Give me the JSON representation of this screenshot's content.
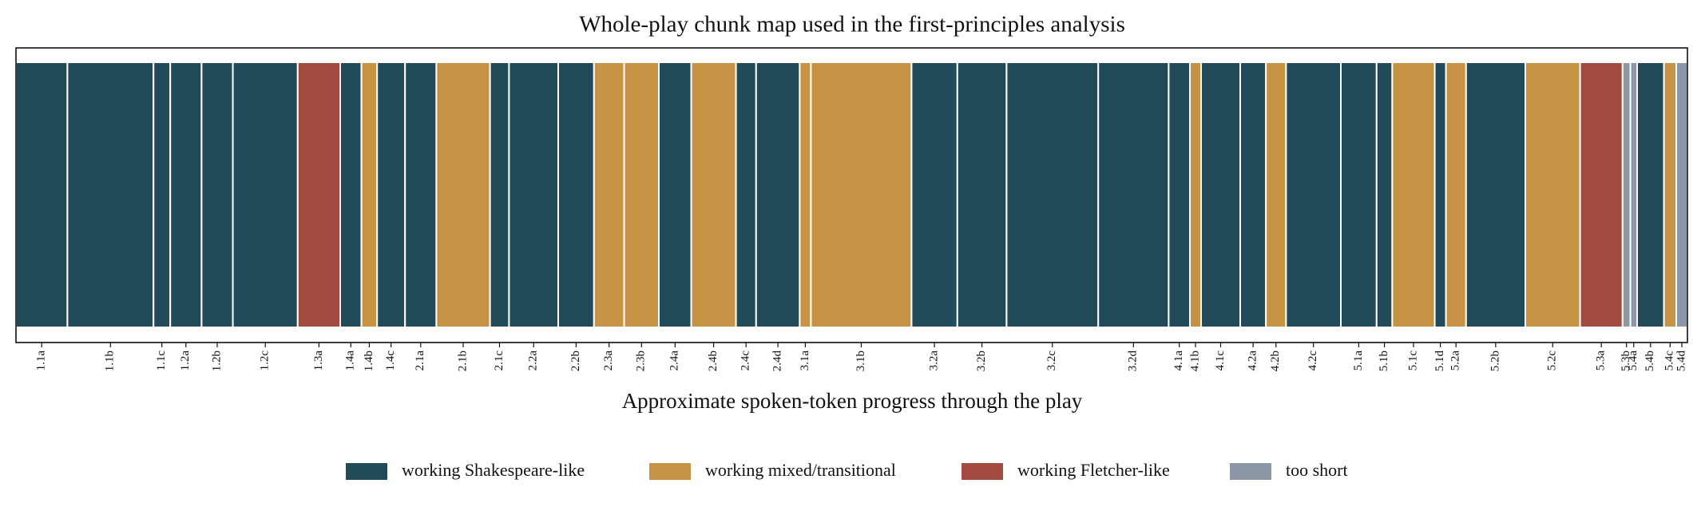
{
  "chart_data": {
    "type": "segmented-bar",
    "title": "Whole-play chunk map used in the first-principles analysis",
    "x_label": "Approximate spoken-token progress through the play",
    "categories": [
      "1.1a",
      "1.1b",
      "1.1c",
      "1.2a",
      "1.2b",
      "1.2c",
      "1.3a",
      "1.4a",
      "1.4b",
      "1.4c",
      "2.1a",
      "2.1b",
      "2.1c",
      "2.2a",
      "2.2b",
      "2.3a",
      "2.3b",
      "2.4a",
      "2.4b",
      "2.4c",
      "2.4d",
      "3.1a",
      "3.1b",
      "3.2a",
      "3.2b",
      "3.2c",
      "3.2d",
      "4.1a",
      "4.1b",
      "4.1c",
      "4.2a",
      "4.2b",
      "4.2c",
      "5.1a",
      "5.1b",
      "5.1c",
      "5.1d",
      "5.2a",
      "5.2b",
      "5.2c",
      "5.3a",
      "5.3b",
      "5.4a",
      "5.4b",
      "5.4c",
      "5.4d"
    ],
    "series": [
      {
        "name": "working Shakespeare-like",
        "color": "#224b5a",
        "values": [
          46,
          77,
          15,
          28,
          28,
          58,
          null,
          19,
          null,
          25,
          28,
          null,
          17,
          44,
          32,
          null,
          null,
          29,
          null,
          18,
          39,
          null,
          null,
          41,
          44,
          82,
          63,
          19,
          null,
          35,
          23,
          null,
          49,
          32,
          14,
          null,
          10,
          null,
          53,
          null,
          null,
          null,
          null,
          24,
          null,
          null
        ]
      },
      {
        "name": "working mixed/transitional",
        "color": "#c69244",
        "values": [
          null,
          null,
          null,
          null,
          null,
          null,
          null,
          null,
          14,
          null,
          null,
          48,
          null,
          null,
          null,
          27,
          31,
          null,
          40,
          null,
          null,
          10,
          90,
          null,
          null,
          null,
          null,
          null,
          10,
          null,
          null,
          18,
          null,
          null,
          null,
          38,
          null,
          18,
          null,
          49,
          null,
          null,
          null,
          null,
          11,
          null
        ]
      },
      {
        "name": "working Fletcher-like",
        "color": "#a34b40",
        "values": [
          null,
          null,
          null,
          null,
          null,
          null,
          38,
          null,
          null,
          null,
          null,
          null,
          null,
          null,
          null,
          null,
          null,
          null,
          null,
          null,
          null,
          null,
          null,
          null,
          null,
          null,
          null,
          null,
          null,
          null,
          null,
          null,
          null,
          null,
          null,
          null,
          null,
          null,
          null,
          null,
          38,
          null,
          null,
          null,
          null,
          null
        ]
      },
      {
        "name": "too short",
        "color": "#8b96a6",
        "values": [
          null,
          null,
          null,
          null,
          null,
          null,
          null,
          null,
          null,
          null,
          null,
          null,
          null,
          null,
          null,
          null,
          null,
          null,
          null,
          null,
          null,
          null,
          null,
          null,
          null,
          null,
          null,
          null,
          null,
          null,
          null,
          null,
          null,
          null,
          null,
          null,
          null,
          null,
          null,
          null,
          null,
          7,
          6,
          null,
          null,
          10
        ]
      }
    ]
  }
}
